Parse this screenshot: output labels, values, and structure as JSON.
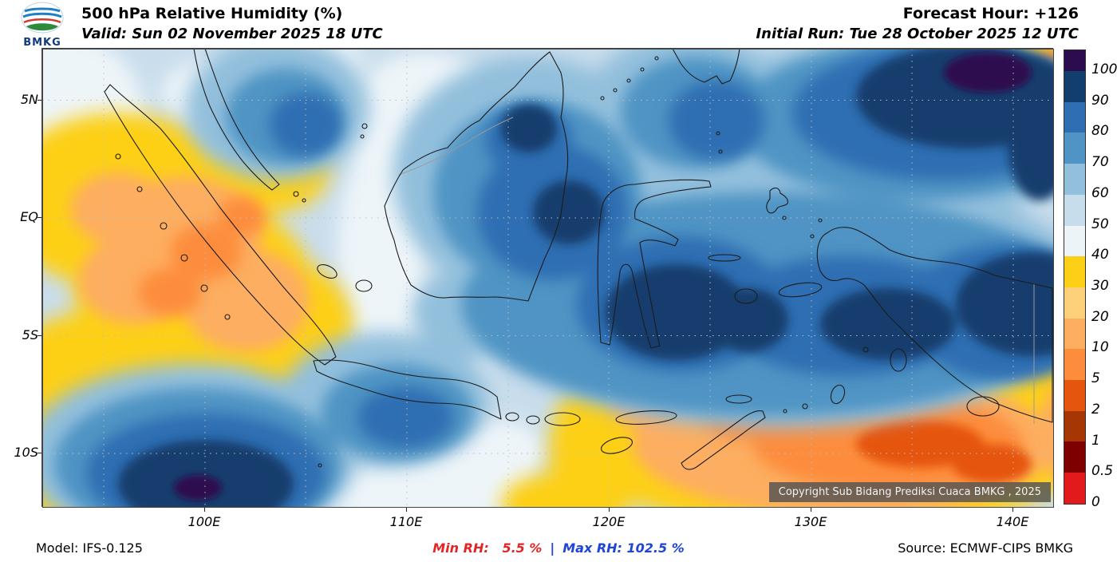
{
  "header": {
    "logo_text": "BMKG",
    "title": "500 hPa Relative Humidity (%)",
    "valid_line": "Valid: Sun 02 November 2025 18 UTC",
    "forecast_hour": "Forecast Hour: +126",
    "initial_run": "Initial Run: Tue 28 October 2025 12 UTC"
  },
  "map": {
    "lat_labels": [
      "5N",
      "EQ",
      "5S",
      "10S"
    ],
    "lon_labels": [
      "100E",
      "110E",
      "120E",
      "130E",
      "140E"
    ],
    "copyright": "Copyright Sub Bidang Prediksi Cuaca BMKG , 2025"
  },
  "colorbar": {
    "labels_top_to_bottom": [
      "100",
      "90",
      "80",
      "70",
      "60",
      "50",
      "40",
      "30",
      "20",
      "10",
      "5",
      "2",
      "1",
      "0.5",
      "0"
    ],
    "colors_top_to_bottom": [
      "#2d0b4f",
      "#123e6d",
      "#2f6eb2",
      "#4f94c4",
      "#92bfdc",
      "#c7ddeb",
      "#edf4f8",
      "#fdd017",
      "#fdd07a",
      "#fdae61",
      "#fd8d3c",
      "#e6550d",
      "#a63603",
      "#7f0000",
      "#e31a1c"
    ]
  },
  "footer": {
    "model": "Model: IFS-0.125",
    "min_text": "Min RH:   5.5 %",
    "separator": "|",
    "max_text": "Max RH: 102.5 %",
    "source": "Source: ECMWF-CIPS BMKG"
  },
  "chart_data": {
    "type": "heatmap",
    "title": "500 hPa Relative Humidity (%)",
    "valid_time": "Sun 02 November 2025 18 UTC",
    "forecast_hour": "+126",
    "initial_run": "Tue 28 October 2025 12 UTC",
    "model": "IFS-0.125",
    "source": "ECMWF-CIPS BMKG",
    "min_rh_percent": 5.5,
    "max_rh_percent": 102.5,
    "lon_ticks": [
      "100E",
      "110E",
      "120E",
      "130E",
      "140E"
    ],
    "lat_ticks": [
      "5N",
      "EQ",
      "5S",
      "10S"
    ],
    "colorbar_boundaries": [
      0,
      0.5,
      1,
      2,
      5,
      10,
      20,
      30,
      40,
      50,
      60,
      70,
      80,
      90,
      100
    ],
    "colorbar_colors_top_to_bottom": [
      "#2d0b4f",
      "#123e6d",
      "#2f6eb2",
      "#4f94c4",
      "#92bfdc",
      "#c7ddeb",
      "#edf4f8",
      "#fdd017",
      "#fdd07a",
      "#fdae61",
      "#fd8d3c",
      "#e6550d",
      "#a63603",
      "#7f0000",
      "#e31a1c"
    ],
    "field_summary": "High RH (70-100%) band over Borneo, Sulawesi, Maluku and Papua; very high RH top-right corner and southwest of Sumatra near 10S; dry air (5-40%) over Sumatra/west, top-right yellow patch, and broad dry region over Timor/Arafura in the southeast"
  }
}
